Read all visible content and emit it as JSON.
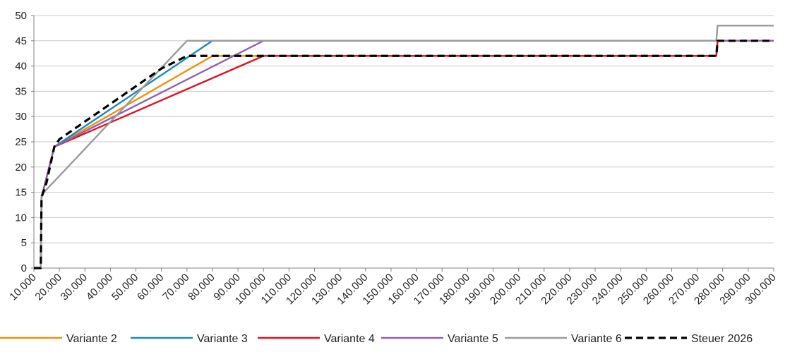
{
  "chart_data": {
    "type": "line",
    "title": "",
    "xlabel": "",
    "ylabel": "",
    "xlim": [
      10000,
      300000
    ],
    "ylim": [
      0,
      50
    ],
    "grid": true,
    "legend_position": "bottom",
    "x_tick_labels": [
      "10.000",
      "20.000",
      "30.000",
      "40.000",
      "50.000",
      "60.000",
      "70.000",
      "80.000",
      "90.000",
      "100.000",
      "110.000",
      "120.000",
      "130.000",
      "140.000",
      "150.000",
      "160.000",
      "170.000",
      "180.000",
      "190.000",
      "200.000",
      "210.000",
      "220.000",
      "230.000",
      "240.000",
      "250.000",
      "260.000",
      "270.000",
      "280.000",
      "290.000",
      "300.000"
    ],
    "y_tick_labels": [
      "0",
      "5",
      "10",
      "15",
      "20",
      "25",
      "30",
      "35",
      "40",
      "45",
      "50"
    ],
    "x_ticks": [
      10000,
      20000,
      30000,
      40000,
      50000,
      60000,
      70000,
      80000,
      90000,
      100000,
      110000,
      120000,
      130000,
      140000,
      150000,
      160000,
      170000,
      180000,
      190000,
      200000,
      210000,
      220000,
      230000,
      240000,
      250000,
      260000,
      270000,
      280000,
      290000,
      300000
    ],
    "y_ticks": [
      0,
      5,
      10,
      15,
      20,
      25,
      30,
      35,
      40,
      45,
      50
    ],
    "series": [
      {
        "name": "Variante 2",
        "color": "#f0900a",
        "dash": "solid",
        "points": [
          [
            10000,
            0
          ],
          [
            12700,
            0
          ],
          [
            13000,
            14
          ],
          [
            18000,
            24
          ],
          [
            80000,
            42
          ],
          [
            277500,
            42
          ],
          [
            278000,
            45
          ],
          [
            300000,
            45
          ]
        ]
      },
      {
        "name": "Variante 3",
        "color": "#1b8ab8",
        "dash": "solid",
        "points": [
          [
            10000,
            0
          ],
          [
            12700,
            0
          ],
          [
            13000,
            14
          ],
          [
            18000,
            24
          ],
          [
            80000,
            45
          ],
          [
            300000,
            45
          ]
        ]
      },
      {
        "name": "Variante 4",
        "color": "#e0111f",
        "dash": "solid",
        "points": [
          [
            10000,
            0
          ],
          [
            12700,
            0
          ],
          [
            13000,
            14
          ],
          [
            18000,
            24
          ],
          [
            100000,
            42
          ],
          [
            277500,
            42
          ],
          [
            278000,
            45
          ],
          [
            300000,
            45
          ]
        ]
      },
      {
        "name": "Variante 5",
        "color": "#8e62ad",
        "dash": "solid",
        "points": [
          [
            10000,
            0
          ],
          [
            12700,
            0
          ],
          [
            13000,
            14
          ],
          [
            18000,
            24
          ],
          [
            100000,
            45
          ],
          [
            300000,
            45
          ]
        ]
      },
      {
        "name": "Variante 6",
        "color": "#9b9b9b",
        "dash": "solid",
        "points": [
          [
            10000,
            0
          ],
          [
            12700,
            0
          ],
          [
            13000,
            14.5
          ],
          [
            70000,
            45
          ],
          [
            277500,
            45
          ],
          [
            278000,
            48
          ],
          [
            300000,
            48
          ]
        ]
      },
      {
        "name": "Steuer 2026",
        "color": "#000000",
        "dash": "dashed",
        "points": [
          [
            10000,
            0
          ],
          [
            12700,
            0
          ],
          [
            13000,
            14
          ],
          [
            15000,
            17
          ],
          [
            18000,
            24
          ],
          [
            20000,
            25.5
          ],
          [
            30000,
            29
          ],
          [
            40000,
            32.5
          ],
          [
            50000,
            36
          ],
          [
            60000,
            39.5
          ],
          [
            70000,
            42
          ],
          [
            277500,
            42
          ],
          [
            278000,
            45
          ],
          [
            300000,
            45
          ]
        ]
      }
    ]
  }
}
